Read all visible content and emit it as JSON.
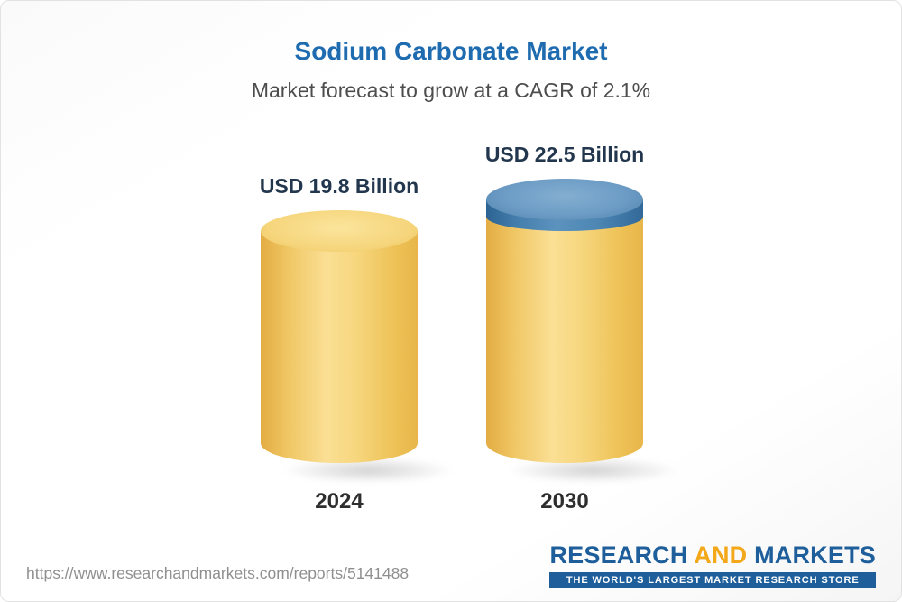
{
  "chart_data": {
    "type": "bar",
    "title": "Sodium Carbonate Market",
    "subtitle": "Market forecast to grow at a CAGR of 2.1%",
    "unit": "USD Billion",
    "cagr_percent": 2.1,
    "categories": [
      "2024",
      "2030"
    ],
    "values": [
      19.8,
      22.5
    ],
    "value_labels": [
      "USD 19.8 Billion",
      "USD 22.5 Billion"
    ],
    "series": [
      {
        "name": "market-size-base",
        "values": [
          19.8,
          19.8
        ],
        "color": "#F2CB69"
      },
      {
        "name": "forecast-growth",
        "values": [
          0,
          2.7
        ],
        "color": "#4C86B4"
      }
    ],
    "legend": "none",
    "grid": false,
    "orientation": "vertical",
    "ylim": [
      0,
      25
    ]
  },
  "footer": {
    "url": "https://www.researchandmarkets.com/reports/5141488",
    "logo": {
      "research": "RESEARCH",
      "and": "AND",
      "markets": "MARKETS",
      "tagline": "THE WORLD'S LARGEST MARKET RESEARCH STORE"
    }
  },
  "colors": {
    "title_blue": "#1E6BB0",
    "subtitle_gray": "#4D4D4D",
    "value_label_navy": "#22374E",
    "bar_gold": "#F2CB69",
    "bar_blue": "#4C86B4",
    "logo_blue": "#1E5F9B",
    "logo_gold": "#F2A818",
    "url_gray": "#8F8F8F"
  }
}
